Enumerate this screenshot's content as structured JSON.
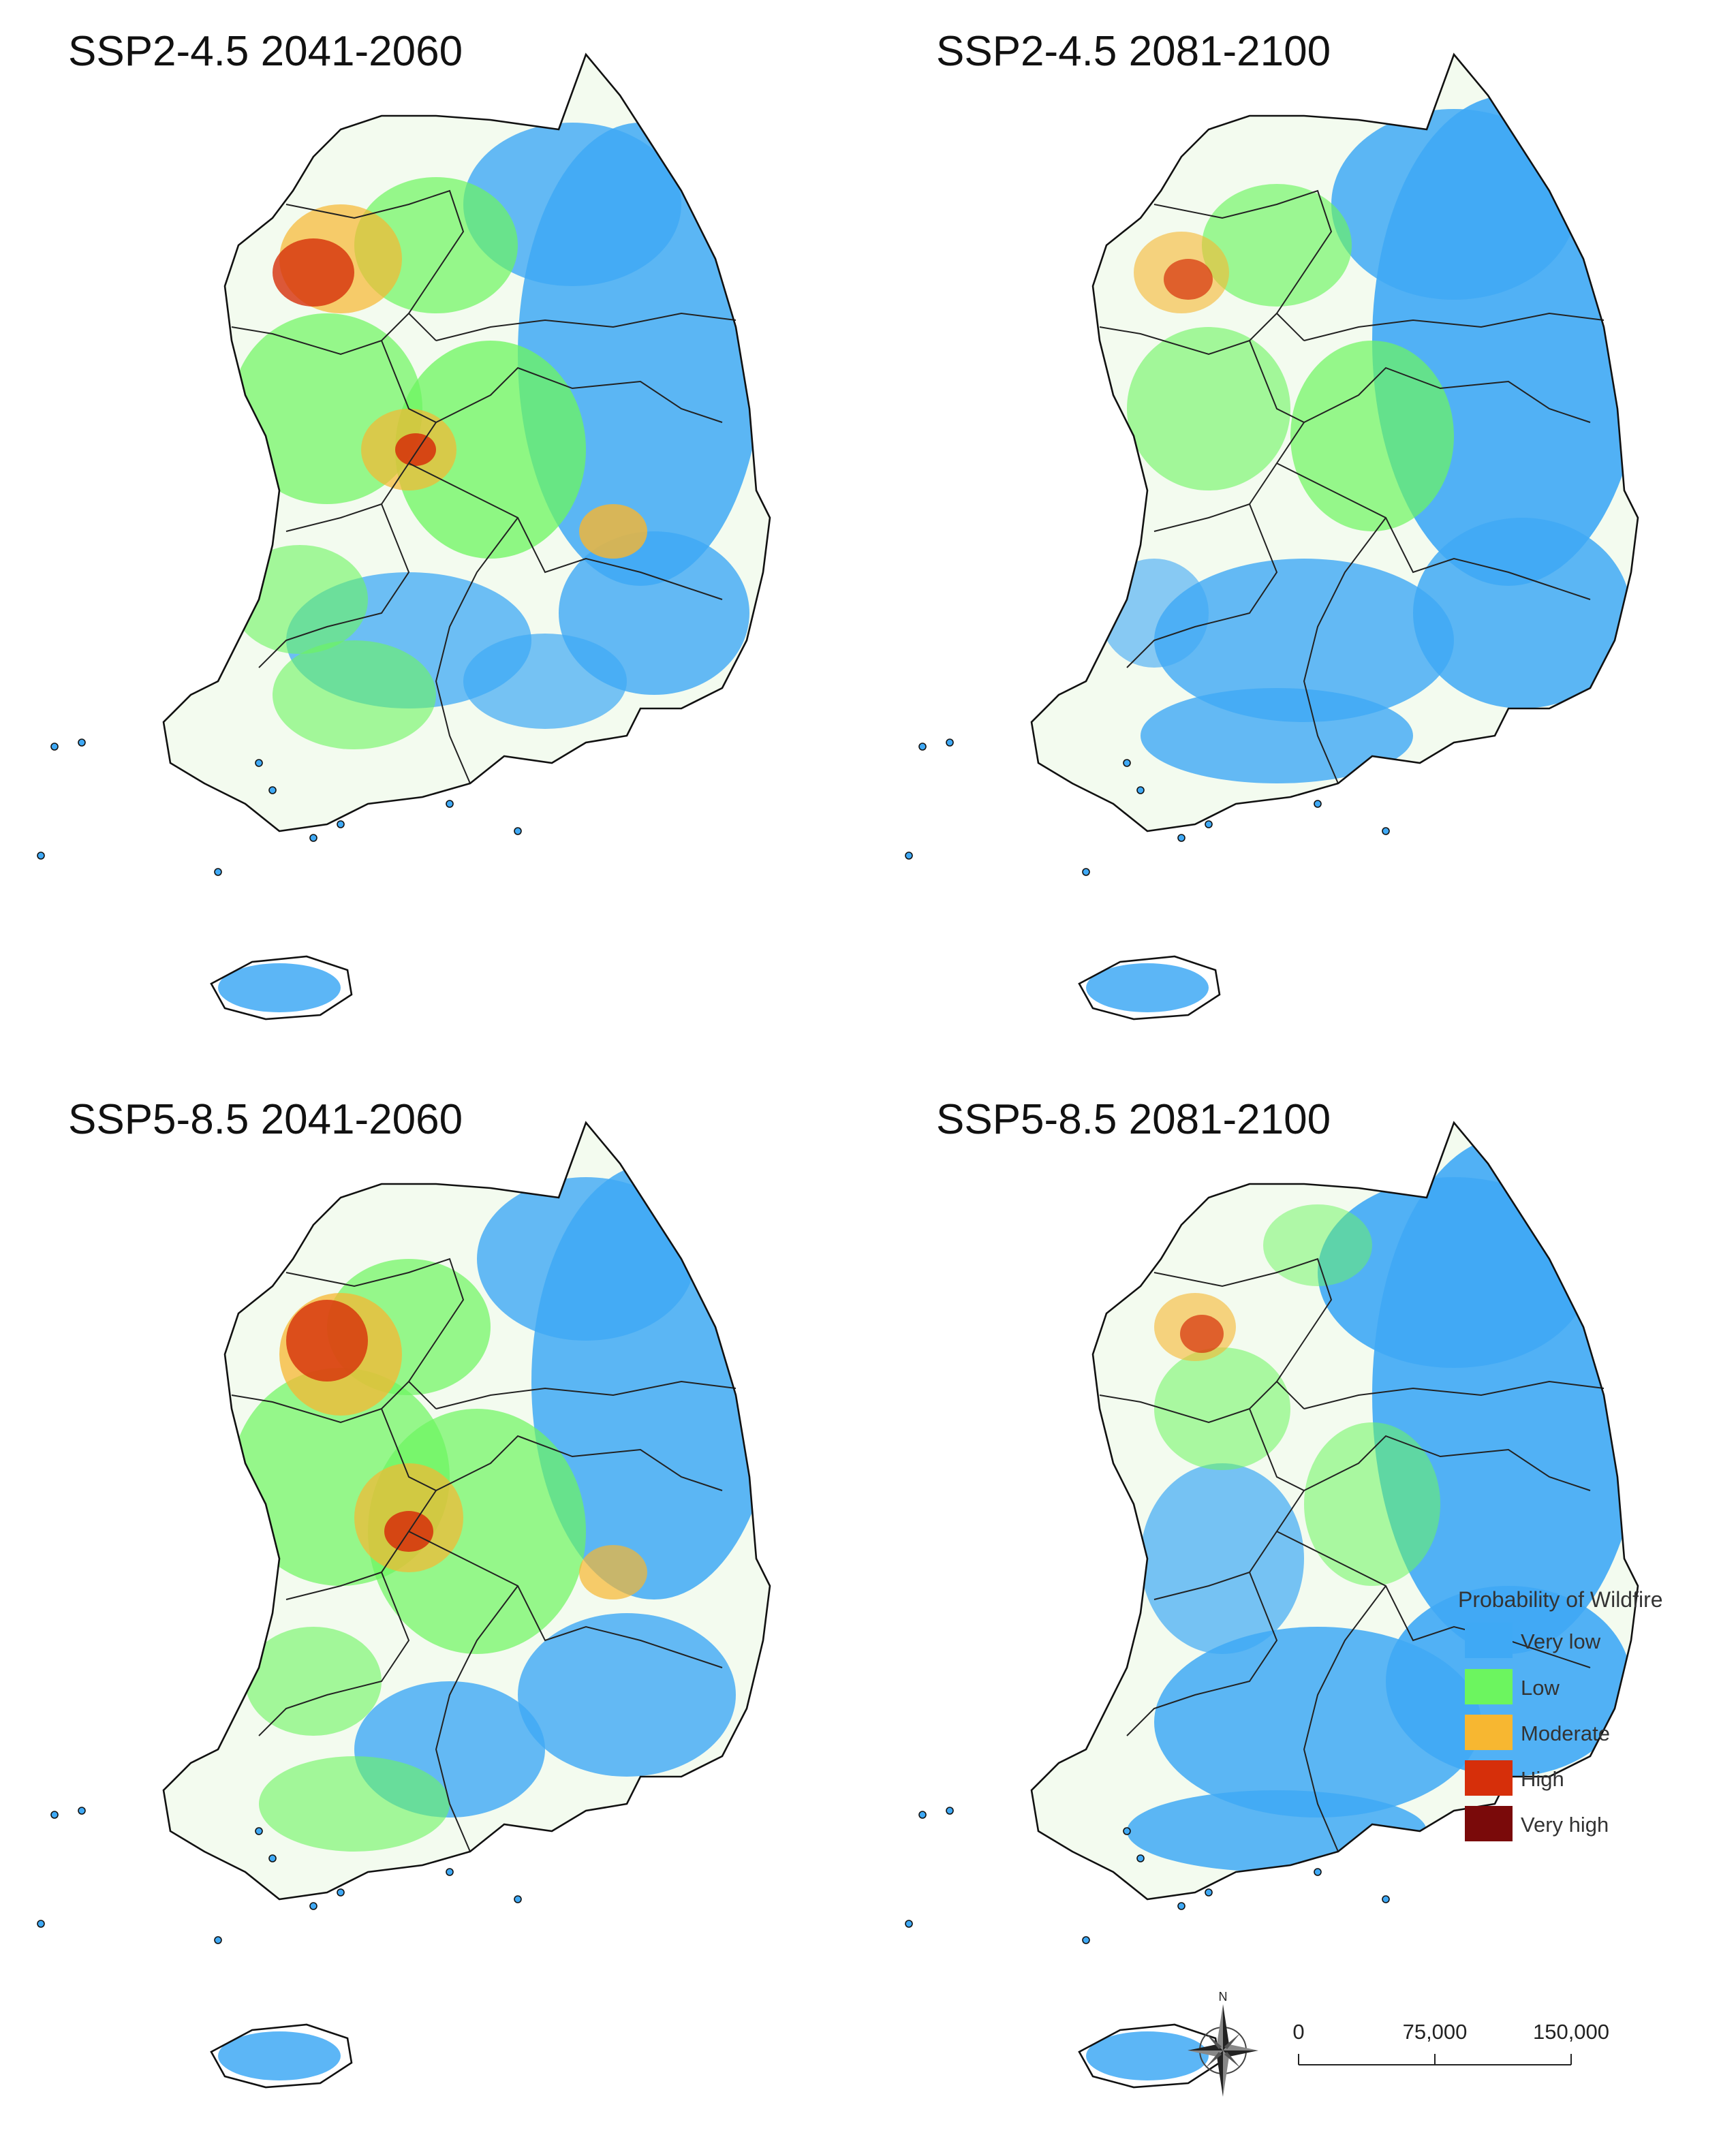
{
  "panels": [
    {
      "title": "SSP2-4.5 2041-2060"
    },
    {
      "title": "SSP2-4.5 2081-2100"
    },
    {
      "title": "SSP5-8.5 2041-2060"
    },
    {
      "title": "SSP5-8.5 2081-2100"
    }
  ],
  "legend": {
    "title": "Probability of Wildfire",
    "items": [
      {
        "label": "Very low",
        "color": "#3fa9f5"
      },
      {
        "label": "Low",
        "color": "#6cf55f"
      },
      {
        "label": "Moderate",
        "color": "#f7b731"
      },
      {
        "label": "High",
        "color": "#d62f0a"
      },
      {
        "label": "Very high",
        "color": "#7a0a0a"
      }
    ]
  },
  "scale_bar": {
    "ticks": [
      "0",
      "75,000",
      "150,000"
    ]
  },
  "north_arrow": {
    "label": "N",
    "icon": "compass-rose-icon"
  }
}
